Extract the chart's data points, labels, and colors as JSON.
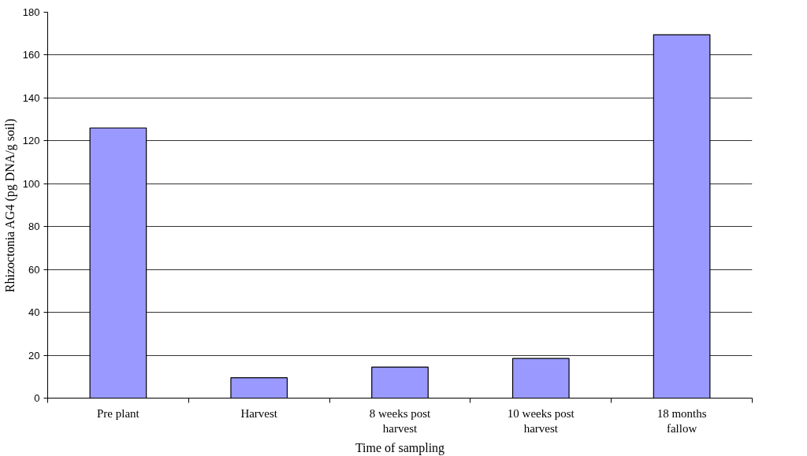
{
  "chart_data": {
    "type": "bar",
    "xlabel": "Time of sampling",
    "ylabel": "Rhizoctonia AG4 (pg DNA/g soil)",
    "categories": [
      "Pre plant",
      "Harvest",
      "8 weeks post harvest",
      "10 weeks post harvest",
      "18 months fallow"
    ],
    "values": [
      126,
      9.5,
      14.5,
      18.5,
      169.5
    ],
    "color": "#9999ff",
    "ylim": [
      0,
      180
    ],
    "yticks": [
      0,
      20,
      40,
      60,
      80,
      100,
      120,
      140,
      160,
      180
    ],
    "grid": "y"
  }
}
